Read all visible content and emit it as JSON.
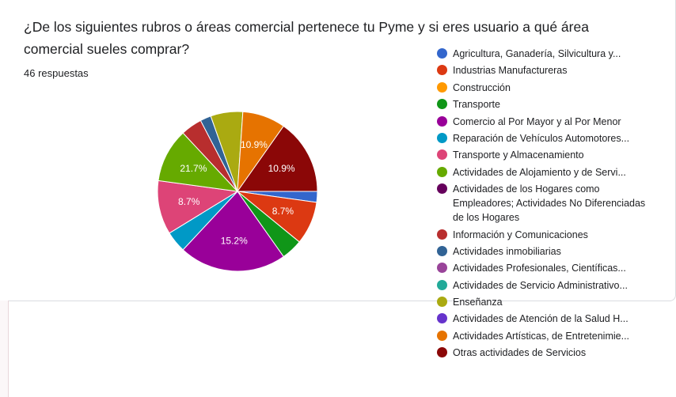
{
  "question": {
    "title": "¿De los siguientes rubros o áreas comercial pertenece tu Pyme y si eres usuario a qué área comercial sueles comprar?",
    "responses": "46 respuestas"
  },
  "chart_data": {
    "type": "pie",
    "title": "",
    "total": 46,
    "categories": [
      "Agricultura, Ganadería, Silvicultura y...",
      "Industrias Manufactureras",
      "Construcción",
      "Transporte",
      "Comercio al Por Mayor y al Por Menor",
      "Reparación de Vehículos Automotores...",
      "Transporte y Almacenamiento",
      "Actividades de Alojamiento y de Servi...",
      "Actividades de los Hogares como Empleadores; Actividades No Diferenciadas de los Hogares",
      "Información y Comunicaciones",
      "Actividades inmobiliarias",
      "Actividades Profesionales, Científicas...",
      "Actividades de Servicio Administrativo...",
      "Enseñanza",
      "Actividades de Atención de la Salud H...",
      "Actividades Artísticas, de Entretenimie...",
      "Otras actividades de Servicios"
    ],
    "colors": [
      "#3366cc",
      "#dc3912",
      "#ff9900",
      "#109618",
      "#990099",
      "#0099c6",
      "#dd4477",
      "#66aa00",
      "#66005c",
      "#b82e2e",
      "#316395",
      "#994499",
      "#22aa99",
      "#aaaa11",
      "#6633cc",
      "#e67300",
      "#8b0707"
    ],
    "values_pct": [
      2.2,
      8.7,
      0,
      4.3,
      21.7,
      4.3,
      10.9,
      10.9,
      0,
      4.3,
      2.2,
      0,
      0,
      6.5,
      0,
      8.7,
      15.2
    ],
    "slice_order": [
      0,
      1,
      3,
      4,
      5,
      6,
      7,
      9,
      10,
      13,
      15,
      16
    ],
    "labeled_slices": [
      "8.7%",
      "15.2%",
      "8.7%",
      "21.7%",
      "10.9%",
      "10.9%"
    ],
    "legend_position": "right"
  }
}
